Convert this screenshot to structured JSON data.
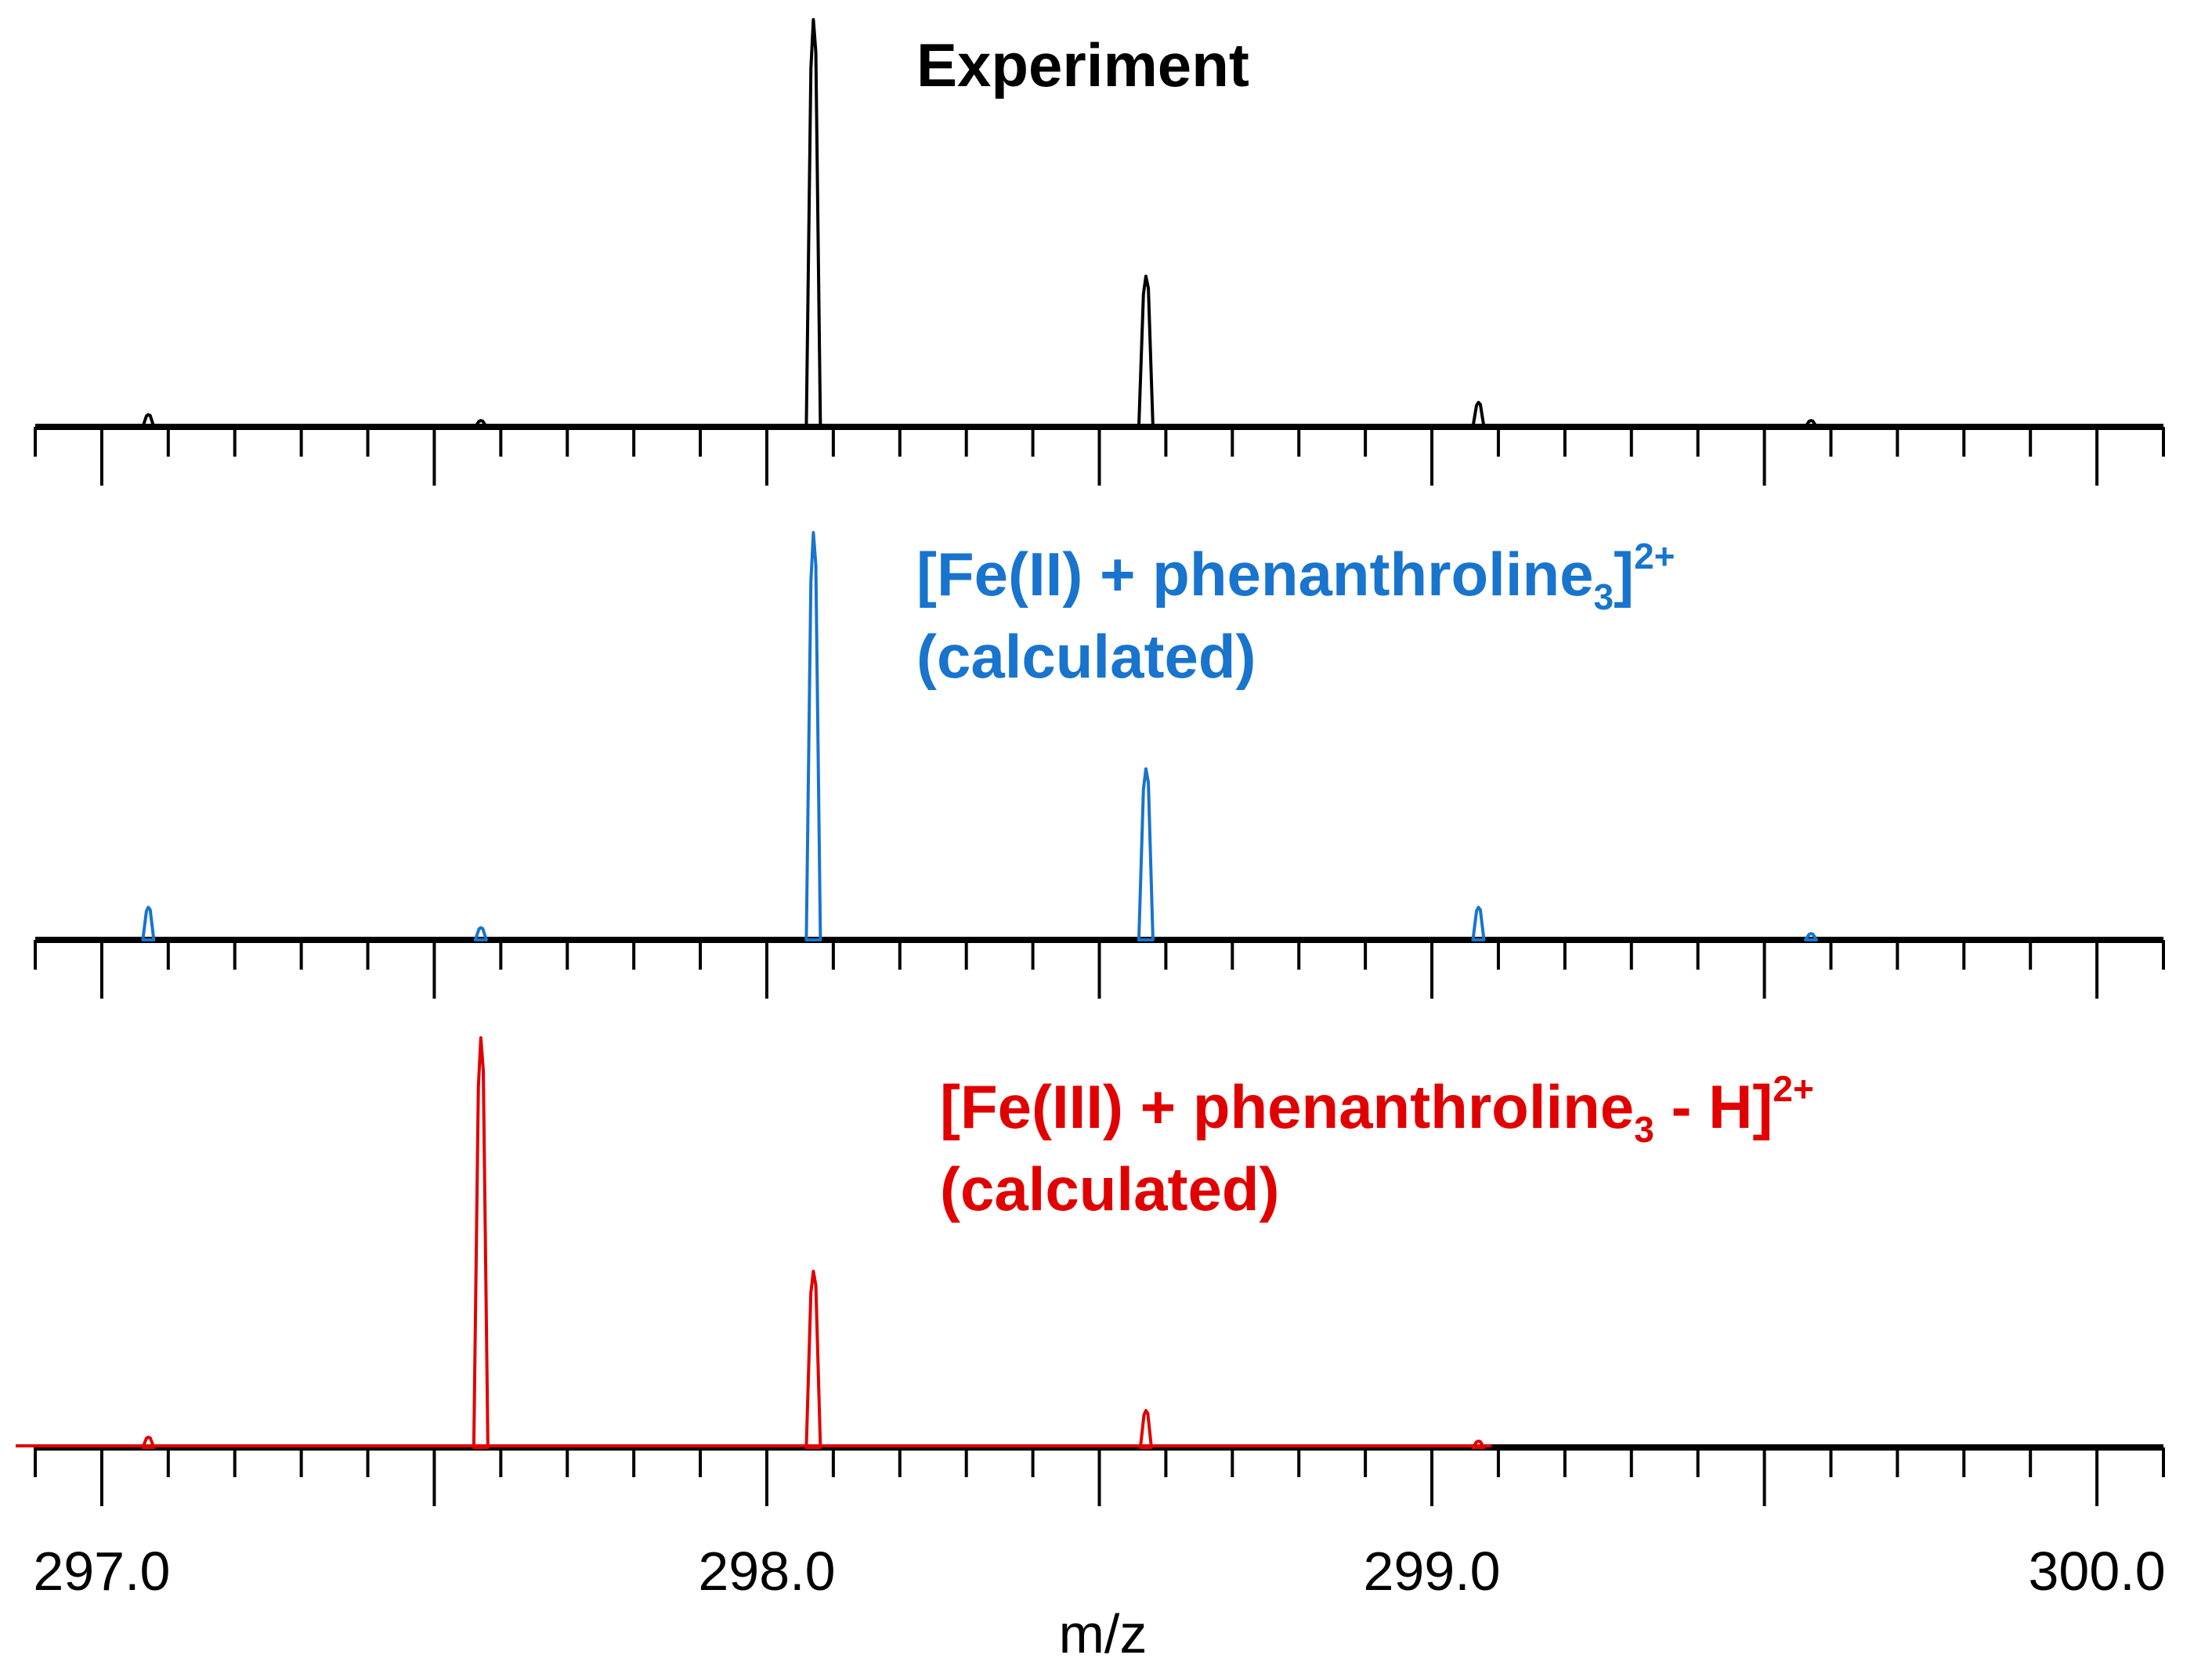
{
  "chart_data": {
    "type": "line",
    "title": "",
    "xlabel": "m/z",
    "ylabel": "",
    "xlim": [
      296.9,
      300.1
    ],
    "x_ticks": [
      {
        "value": 297.0,
        "label": "297.0"
      },
      {
        "value": 298.0,
        "label": "298.0"
      },
      {
        "value": 299.0,
        "label": "299.0"
      },
      {
        "value": 300.0,
        "label": "300.0"
      }
    ],
    "minor_tick_step": 0.1,
    "panels": [
      {
        "name": "Experiment",
        "color": "#000000",
        "label_lines": [
          {
            "text": "Experiment"
          }
        ],
        "peaks": [
          {
            "mz": 297.07,
            "rel": 3
          },
          {
            "mz": 297.57,
            "rel": 1.5
          },
          {
            "mz": 298.07,
            "rel": 100
          },
          {
            "mz": 298.57,
            "rel": 37
          },
          {
            "mz": 299.07,
            "rel": 6
          },
          {
            "mz": 299.57,
            "rel": 0.8
          }
        ]
      },
      {
        "name": "Fe(II) calculated",
        "color": "#1874cd",
        "label_lines": [
          {
            "main": "[Fe(II) + phenanthroline",
            "sub": "3",
            "after": "]",
            "sup": "2+"
          },
          {
            "main": "(calculated)"
          }
        ],
        "peaks": [
          {
            "mz": 297.07,
            "rel": 8
          },
          {
            "mz": 297.57,
            "rel": 3
          },
          {
            "mz": 298.07,
            "rel": 100
          },
          {
            "mz": 298.57,
            "rel": 42
          },
          {
            "mz": 299.07,
            "rel": 8
          },
          {
            "mz": 299.57,
            "rel": 1
          }
        ]
      },
      {
        "name": "Fe(III) calculated",
        "color": "#e00000",
        "label_lines": [
          {
            "main": "[Fe(III) + phenanthroline",
            "sub": "3",
            "after": " - H]",
            "sup": "2+"
          },
          {
            "main": "(calculated)"
          }
        ],
        "peaks": [
          {
            "mz": 297.07,
            "rel": 2.5
          },
          {
            "mz": 297.57,
            "rel": 100
          },
          {
            "mz": 298.07,
            "rel": 43
          },
          {
            "mz": 298.57,
            "rel": 9
          },
          {
            "mz": 299.07,
            "rel": 1.5
          }
        ]
      }
    ]
  }
}
